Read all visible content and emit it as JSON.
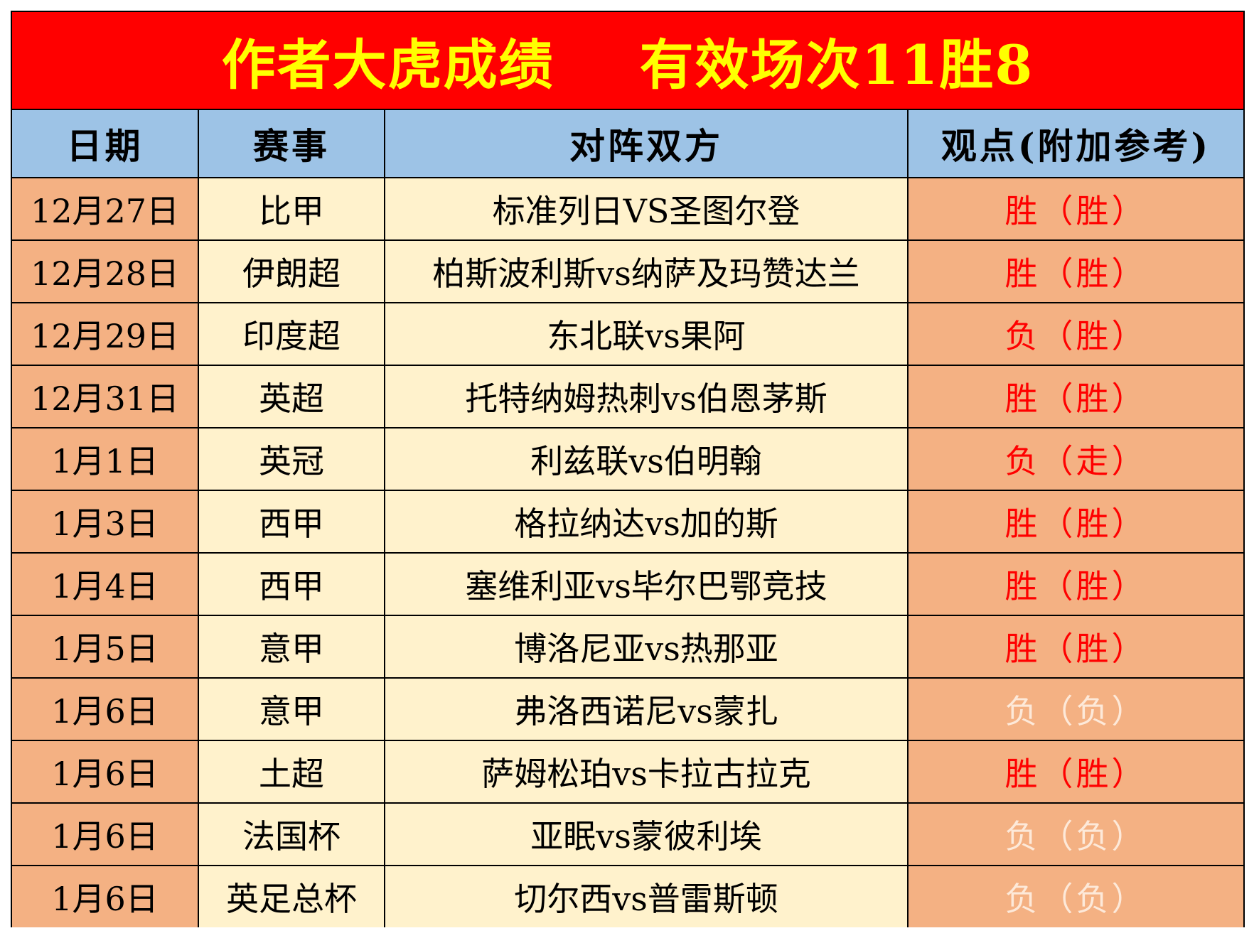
{
  "title": {
    "left": "作者大虎成绩",
    "right": "有效场次11胜8"
  },
  "headers": {
    "date": "日期",
    "league": "赛事",
    "match": "对阵双方",
    "view": "观点(附加参考)"
  },
  "rows": [
    {
      "date": "12月27日",
      "league": "比甲",
      "match": "标准列日VS圣图尔登",
      "view": "胜（胜）"
    },
    {
      "date": "12月28日",
      "league": "伊朗超",
      "match": "柏斯波利斯vs纳萨及玛赞达兰",
      "view": "胜（胜）"
    },
    {
      "date": "12月29日",
      "league": "印度超",
      "match": "东北联vs果阿",
      "view": "负（胜）"
    },
    {
      "date": "12月31日",
      "league": "英超",
      "match": "托特纳姆热刺vs伯恩茅斯",
      "view": "胜（胜）"
    },
    {
      "date": "1月1日",
      "league": "英冠",
      "match": "利兹联vs伯明翰",
      "view": "负（走）"
    },
    {
      "date": "1月3日",
      "league": "西甲",
      "match": "格拉纳达vs加的斯",
      "view": "胜（胜）"
    },
    {
      "date": "1月4日",
      "league": "西甲",
      "match": "塞维利亚vs毕尔巴鄂竞技",
      "view": "胜（胜）"
    },
    {
      "date": "1月5日",
      "league": "意甲",
      "match": "博洛尼亚vs热那亚",
      "view": "胜（胜）"
    },
    {
      "date": "1月6日",
      "league": "意甲",
      "match": "弗洛西诺尼vs蒙扎",
      "view": "负（负）"
    },
    {
      "date": "1月6日",
      "league": "土超",
      "match": "萨姆松珀vs卡拉古拉克",
      "view": "胜（胜）"
    },
    {
      "date": "1月6日",
      "league": "法国杯",
      "match": "亚眠vs蒙彼利埃",
      "view": "负（负）"
    },
    {
      "date": "1月6日",
      "league": "英足总杯",
      "match": "切尔西vs普雷斯顿",
      "view": "负（负）"
    }
  ],
  "colors": {
    "title_bg": "#ff0000",
    "title_text": "#ffff00",
    "header_bg": "#9dc3e6",
    "date_bg": "#f4b183",
    "body_bg": "#fff2cc",
    "result_red": "#ff0000",
    "result_pale": "#fde9d9"
  }
}
